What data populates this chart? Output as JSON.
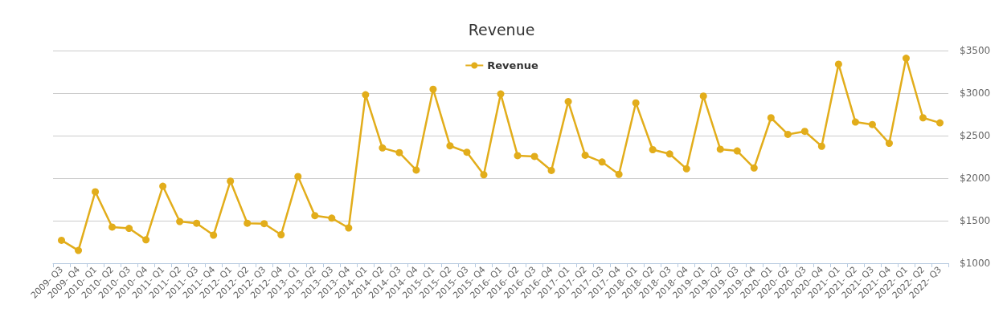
{
  "chart_data": {
    "type": "line",
    "title": "Revenue",
    "categories": [
      "2009- Q3",
      "2009- Q4",
      "2010- Q1",
      "2010- Q2",
      "2010- Q3",
      "2010- Q4",
      "2011- Q1",
      "2011- Q2",
      "2011- Q3",
      "2011- Q4",
      "2012- Q1",
      "2012- Q2",
      "2012- Q3",
      "2012- Q4",
      "2013- Q1",
      "2013- Q2",
      "2013- Q3",
      "2013- Q4",
      "2014- Q1",
      "2014- Q2",
      "2014- Q3",
      "2014- Q4",
      "2015- Q1",
      "2015- Q2",
      "2015- Q3",
      "2015- Q4",
      "2016- Q1",
      "2016- Q2",
      "2016- Q3",
      "2016- Q4",
      "2017- Q1",
      "2017- Q2",
      "2017- Q3",
      "2017- Q4",
      "2018- Q1",
      "2018- Q2",
      "2018- Q3",
      "2018- Q4",
      "2019- Q1",
      "2019- Q2",
      "2019- Q3",
      "2019- Q4",
      "2020- Q1",
      "2020- Q2",
      "2020- Q3",
      "2020- Q4",
      "2021- Q1",
      "2021- Q2",
      "2021- Q3",
      "2021- Q4",
      "2022- Q1",
      "2022- Q2",
      "2022- Q3"
    ],
    "series": [
      {
        "name": "Revenue",
        "color": "#e2ad1b",
        "values": [
          1270,
          1150,
          1840,
          1425,
          1410,
          1275,
          1905,
          1490,
          1470,
          1330,
          1965,
          1470,
          1465,
          1335,
          2020,
          1560,
          1530,
          1415,
          2980,
          2355,
          2300,
          2095,
          3045,
          2380,
          2305,
          2040,
          2990,
          2265,
          2255,
          2090,
          2900,
          2270,
          2190,
          2045,
          2885,
          2335,
          2285,
          2110,
          2965,
          2340,
          2320,
          2120,
          2710,
          2515,
          2550,
          2375,
          3340,
          2660,
          2630,
          2410,
          3410,
          2710,
          2650
        ]
      }
    ],
    "ylim": [
      1000,
      3500
    ],
    "yticks": [
      {
        "value": 1000,
        "label": "$1000"
      },
      {
        "value": 1500,
        "label": "$1500"
      },
      {
        "value": 2000,
        "label": "$2000"
      },
      {
        "value": 2500,
        "label": "$2500"
      },
      {
        "value": 3000,
        "label": "$3000"
      },
      {
        "value": 3500,
        "label": "$3500"
      }
    ],
    "grid": "y",
    "legend": "top",
    "marker": "circle",
    "line_style": "solid"
  }
}
